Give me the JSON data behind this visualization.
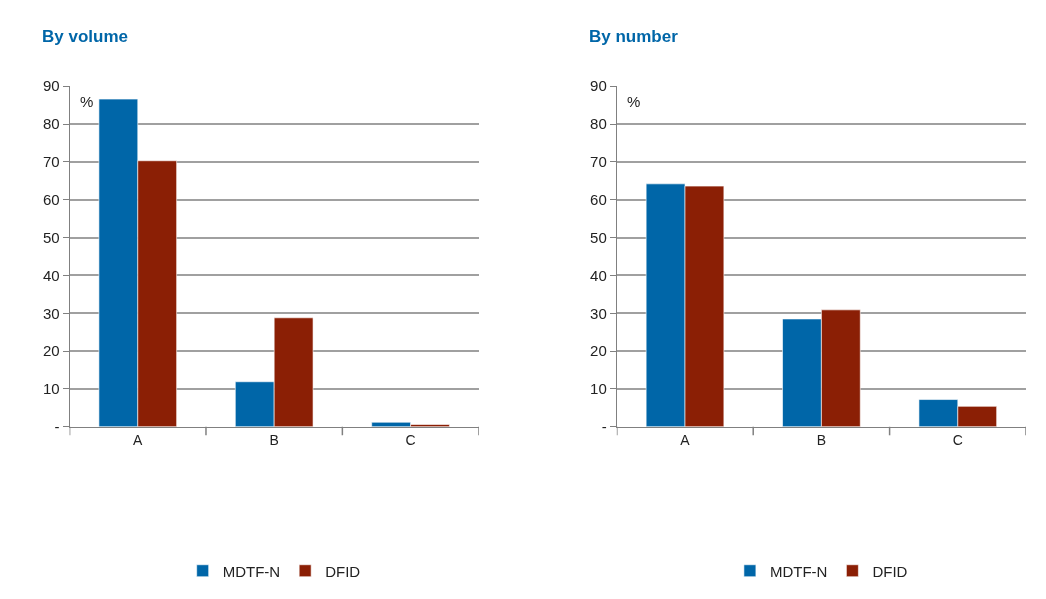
{
  "chart_data": [
    {
      "type": "bar",
      "title": "By volume",
      "categories": [
        "A",
        "B",
        "C"
      ],
      "series": [
        {
          "name": "MDTF-N",
          "color": "#0066a8",
          "values": [
            86.6,
            11.9,
            1.2
          ]
        },
        {
          "name": "DFID",
          "color": "#8b1f05",
          "values": [
            70.3,
            28.8,
            0.6
          ]
        }
      ],
      "ylim": [
        0,
        90
      ],
      "yticks": [
        {
          "value": 0,
          "label": "-"
        },
        10,
        20,
        30,
        40,
        50,
        60,
        70,
        80,
        90
      ],
      "annotations": [
        "%"
      ],
      "grid": "y",
      "legend": "bottom"
    },
    {
      "type": "bar",
      "title": "By number",
      "categories": [
        "A",
        "B",
        "C"
      ],
      "series": [
        {
          "name": "MDTF-N",
          "color": "#0066a8",
          "values": [
            64.2,
            28.5,
            7.2
          ]
        },
        {
          "name": "DFID",
          "color": "#8b1f05",
          "values": [
            63.6,
            30.9,
            5.4
          ]
        }
      ],
      "ylim": [
        0,
        90
      ],
      "yticks": [
        {
          "value": 0,
          "label": "-"
        },
        10,
        20,
        30,
        40,
        50,
        60,
        70,
        80,
        90
      ],
      "annotations": [
        "%"
      ],
      "grid": "y",
      "legend": "bottom"
    }
  ]
}
